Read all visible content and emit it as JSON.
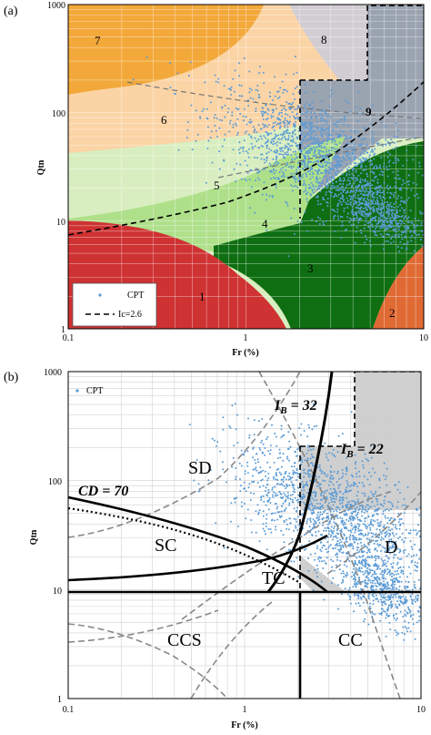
{
  "chart_data": [
    {
      "type": "scatter",
      "panel_label": "(a)",
      "xlabel": "Fr (%)",
      "ylabel": "Qtn",
      "xscale": "log",
      "yscale": "log",
      "xlim": [
        0.1,
        10
      ],
      "ylim": [
        1,
        1000
      ],
      "x_ticks": [
        "0.1",
        "1",
        "10"
      ],
      "y_ticks": [
        "1",
        "10",
        "100",
        "1000"
      ],
      "grid": true,
      "legend": {
        "placement": "bottom-left",
        "entries": [
          "CPT",
          "Ic=2.6"
        ]
      },
      "zone_labels": [
        "1",
        "2",
        "3",
        "4",
        "5",
        "6",
        "7",
        "8",
        "9"
      ],
      "series": [
        {
          "name": "CPT",
          "kind": "points",
          "color": "#5b9bd5"
        },
        {
          "name": "Ic=2.6",
          "kind": "dashed-line",
          "color": "#000000"
        }
      ],
      "point_cloud": {
        "main": {
          "x_center": 2.5,
          "y_center": 40,
          "x_range": [
            0.6,
            7.5
          ],
          "y_range": [
            12,
            230
          ]
        },
        "tail": {
          "x_center": 5.5,
          "y_center": 12,
          "x_range": [
            3,
            9
          ],
          "y_range": [
            6,
            25
          ]
        }
      },
      "colors": {
        "zone1": "#cf3232",
        "zone2": "#e06a33",
        "zone3": "#0f6e12",
        "zone4": "#aee08a",
        "zone5": "#d9eec0",
        "zone6": "#fbd4a6",
        "zone7": "#f3a83a",
        "zone8": "#d2cdd3",
        "zone9": "#9aa3b0"
      }
    },
    {
      "type": "scatter",
      "panel_label": "(b)",
      "xlabel": "Fr (%)",
      "ylabel": "Qtn",
      "xscale": "log",
      "yscale": "log",
      "xlim": [
        0.1,
        10
      ],
      "ylim": [
        1,
        1000
      ],
      "x_ticks": [
        "0.1",
        "1",
        "10"
      ],
      "y_ticks": [
        "1",
        "10",
        "100",
        "1000"
      ],
      "grid": true,
      "legend": {
        "placement": "top-left",
        "entries": [
          "CPT"
        ]
      },
      "zone_labels": [
        "SD",
        "SC",
        "TC",
        "CCS",
        "CC",
        "D"
      ],
      "annotations": [
        "CD = 70",
        "I",
        "B",
        " = 32",
        "I",
        "B",
        " = 22"
      ],
      "series": [
        {
          "name": "CPT",
          "kind": "points",
          "color": "#5b9bd5"
        }
      ],
      "point_cloud": {
        "main": {
          "x_center": 3.2,
          "y_center": 50,
          "x_range": [
            0.7,
            9
          ],
          "y_range": [
            10,
            250
          ]
        },
        "tail": {
          "x_center": 6,
          "y_center": 10,
          "x_range": [
            3,
            9
          ],
          "y_range": [
            4,
            20
          ]
        }
      }
    }
  ]
}
